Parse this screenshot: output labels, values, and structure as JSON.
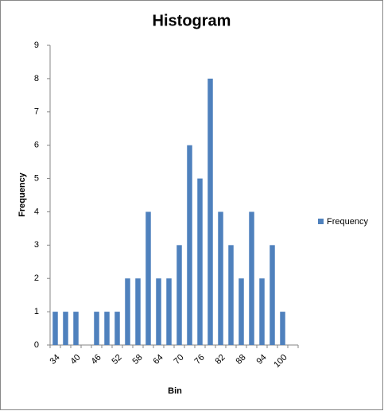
{
  "chart_data": {
    "type": "bar",
    "title": "Histogram",
    "xlabel": "Bin",
    "ylabel": "Frequency",
    "categories": [
      34,
      null,
      40,
      null,
      46,
      null,
      52,
      null,
      58,
      null,
      64,
      null,
      70,
      null,
      76,
      null,
      82,
      null,
      88,
      null,
      94,
      null,
      100,
      null
    ],
    "series": [
      {
        "name": "Frequency",
        "color": "#4f81bd",
        "values": [
          1,
          1,
          1,
          0,
          1,
          1,
          1,
          2,
          2,
          4,
          2,
          2,
          3,
          6,
          5,
          8,
          4,
          3,
          2,
          4,
          2,
          3,
          1,
          0
        ]
      }
    ],
    "ylim": [
      0,
      9
    ],
    "yticks": [
      0,
      1,
      2,
      3,
      4,
      5,
      6,
      7,
      8,
      9
    ],
    "grid": false,
    "legend": "right"
  }
}
